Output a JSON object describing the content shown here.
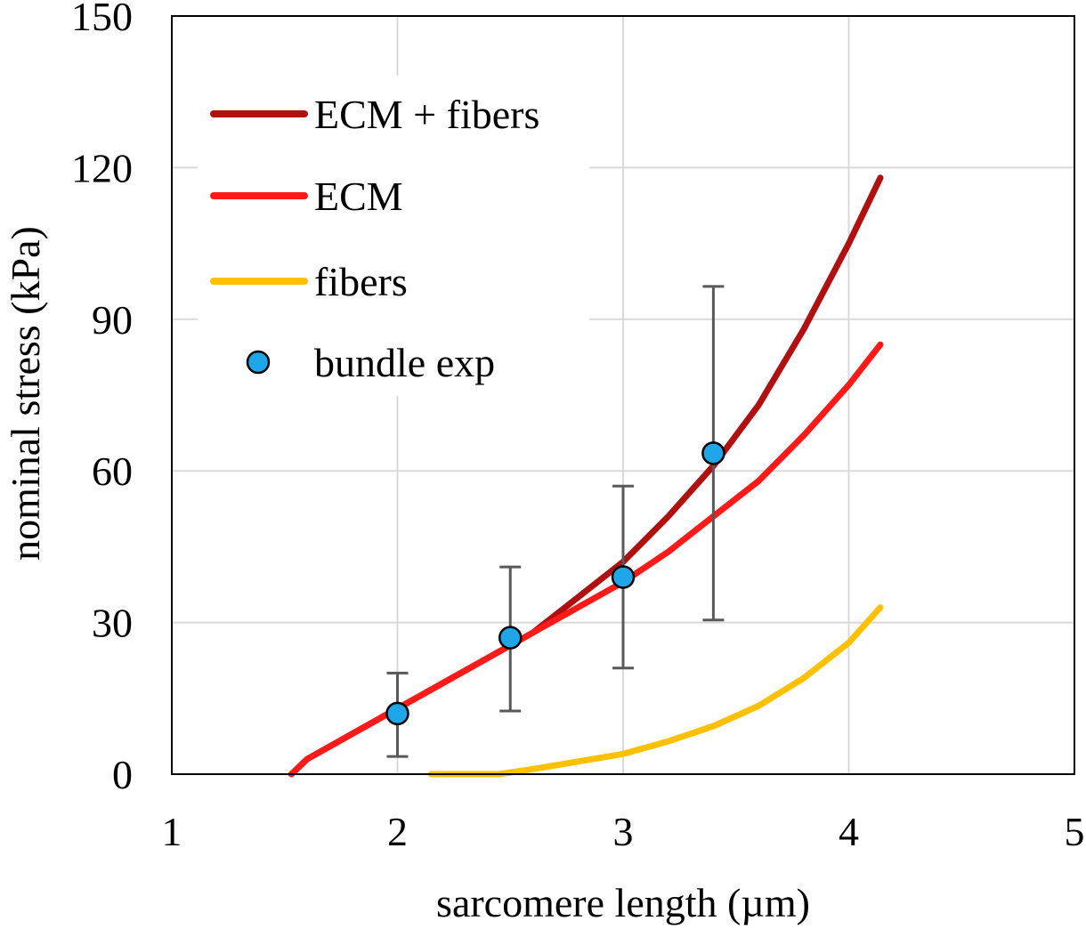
{
  "chart_data": {
    "type": "line",
    "title": "",
    "xlabel": "sarcomere length (µm)",
    "ylabel": "nominal stress (kPa)",
    "xlim": [
      1,
      5
    ],
    "ylim": [
      0,
      150
    ],
    "xticks": [
      1,
      2,
      3,
      4,
      5
    ],
    "yticks": [
      0,
      30,
      60,
      90,
      120,
      150
    ],
    "grid": true,
    "legend_position": "top-left",
    "series": [
      {
        "name": "ECM + fibers",
        "kind": "line",
        "color": "#B01010",
        "x": [
          1.53,
          1.6,
          1.8,
          2.0,
          2.2,
          2.4,
          2.6,
          2.8,
          3.0,
          3.2,
          3.4,
          3.6,
          3.8,
          4.0,
          4.14
        ],
        "y": [
          0,
          3,
          8,
          13,
          18,
          23,
          28,
          35,
          42,
          51,
          61,
          73,
          88,
          105,
          118
        ]
      },
      {
        "name": "ECM",
        "kind": "line",
        "color": "#FF1A1A",
        "x": [
          1.53,
          1.6,
          1.8,
          2.0,
          2.2,
          2.4,
          2.6,
          2.8,
          3.0,
          3.2,
          3.4,
          3.6,
          3.8,
          4.0,
          4.14
        ],
        "y": [
          0,
          3,
          8,
          13,
          18,
          23,
          28,
          33,
          38,
          44,
          51,
          58,
          67,
          77,
          85
        ]
      },
      {
        "name": "fibers",
        "kind": "line",
        "color": "#FFC000",
        "x": [
          2.15,
          2.3,
          2.45,
          2.6,
          2.8,
          3.0,
          3.2,
          3.4,
          3.6,
          3.8,
          4.0,
          4.14
        ],
        "y": [
          0,
          0,
          0,
          1,
          2.5,
          4,
          6.5,
          9.5,
          13.5,
          19,
          26,
          33
        ]
      },
      {
        "name": "bundle exp",
        "kind": "scatter",
        "color": "#1EA6E8",
        "x": [
          2.0,
          2.5,
          3.0,
          3.4
        ],
        "y": [
          12,
          27,
          39,
          63.5
        ],
        "error_low": [
          3.5,
          12.5,
          21,
          30.5
        ],
        "error_high": [
          20,
          41,
          57,
          96.5
        ]
      }
    ]
  }
}
